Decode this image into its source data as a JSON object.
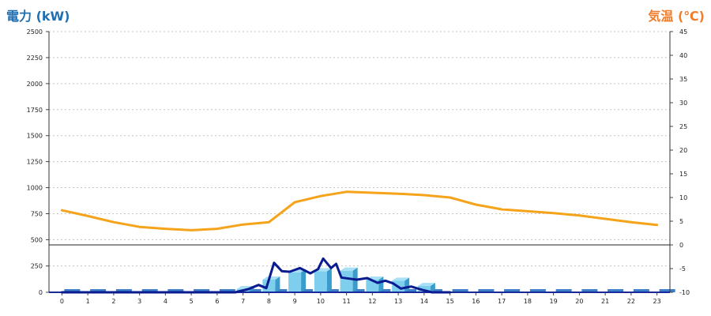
{
  "chart_data": {
    "type": "line",
    "left_axis_label": "電力 (kW)",
    "right_axis_label": "気温 (℃)",
    "x_categories": [
      "0",
      "1",
      "2",
      "3",
      "4",
      "5",
      "6",
      "7",
      "8",
      "9",
      "10",
      "11",
      "12",
      "13",
      "14",
      "15",
      "16",
      "17",
      "18",
      "19",
      "20",
      "21",
      "22",
      "23"
    ],
    "left_ticks_upper": [
      "500",
      "750",
      "1000",
      "1250",
      "1500",
      "1750",
      "2000",
      "2250",
      "2500"
    ],
    "left_ticks_lower": [
      "0",
      "250"
    ],
    "right_ticks": [
      "-10",
      "-5",
      "0",
      "5",
      "10",
      "15",
      "20",
      "25",
      "30",
      "35",
      "40",
      "45"
    ],
    "upper_ylim": [
      450,
      2500
    ],
    "lower_ylim": [
      0,
      450
    ],
    "right_ylim": [
      -10,
      45
    ],
    "grid": true,
    "series": [
      {
        "name": "気温",
        "color": "#f5a31a",
        "axis": "right",
        "x": [
          0,
          1,
          2,
          3,
          4,
          5,
          6,
          7,
          8,
          9,
          10,
          11,
          12,
          13,
          14,
          15,
          16,
          17,
          18,
          19,
          20,
          21,
          22,
          23
        ],
        "values": [
          7.3,
          6.1,
          4.8,
          3.8,
          3.4,
          3.1,
          3.4,
          4.3,
          4.8,
          9.0,
          10.3,
          11.2,
          11.0,
          10.8,
          10.5,
          10.0,
          8.5,
          7.5,
          7.1,
          6.7,
          6.2,
          5.5,
          4.8,
          4.2
        ]
      },
      {
        "name": "電力",
        "color": "#0a1a8f",
        "axis": "left",
        "x": [
          0,
          1,
          2,
          3,
          4,
          5,
          6,
          6.7,
          7.2,
          7.6,
          7.9,
          8.2,
          8.5,
          8.8,
          9.2,
          9.6,
          9.9,
          10.1,
          10.4,
          10.6,
          10.8,
          11.1,
          11.4,
          11.8,
          12.2,
          12.5,
          12.8,
          13.1,
          13.5,
          13.9,
          14.3,
          14.6,
          15
        ],
        "values": [
          0,
          0,
          0,
          0,
          0,
          0,
          0,
          0,
          30,
          70,
          40,
          280,
          200,
          195,
          230,
          180,
          220,
          320,
          230,
          270,
          140,
          130,
          120,
          135,
          90,
          110,
          85,
          35,
          55,
          25,
          0,
          0,
          0
        ]
      }
    ],
    "bars": {
      "name": "電力",
      "color": "#7ecfee",
      "side_color": "#3a9ccc",
      "stub_color": "#3d7ec8",
      "axis": "left",
      "x": [
        7,
        8,
        9,
        10,
        11,
        12,
        13,
        14
      ],
      "values": [
        30,
        120,
        190,
        200,
        205,
        120,
        110,
        60
      ]
    }
  }
}
